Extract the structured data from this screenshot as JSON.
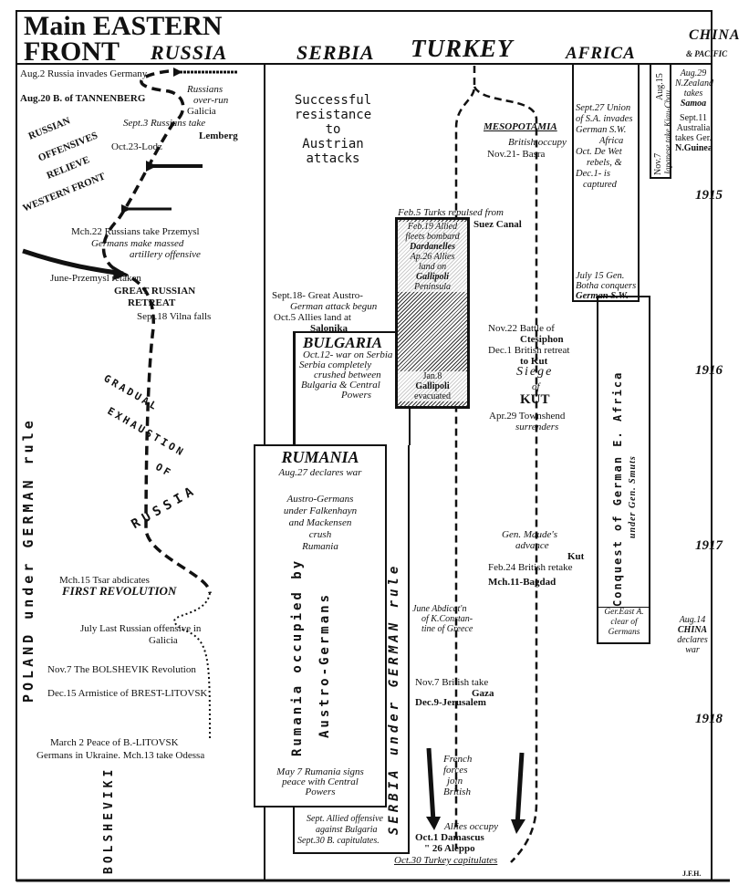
{
  "title": {
    "line1": "Main EASTERN",
    "line2": "FRONT"
  },
  "headers": {
    "russia": "RUSSIA",
    "serbia": "SERBIA",
    "turkey": "TURKEY",
    "africa": "AFRICA",
    "china": "CHINA",
    "pacific": "& PACIFIC"
  },
  "years": [
    "1915",
    "1916",
    "1917",
    "1918"
  ],
  "russia": {
    "events": [
      "Aug.2 Russia invades Germany",
      "Aug.20 B. of TANNENBERG",
      "Russians",
      "over-run",
      "Galicia",
      "Sept.3 Russians take",
      "Lemberg",
      "Oct.23-Lodz",
      "Mch.22 Russians take Przemysl",
      "Germans make massed",
      "artillery offensive",
      "June-Przemysl retaken",
      "GREAT RUSSIAN",
      "RETREAT",
      "Sept.18 Vilna falls",
      "Mch.15 Tsar abdicates",
      "FIRST REVOLUTION",
      "July Last Russian offensive in",
      "Galicia",
      "Nov.7 The BOLSHEVIK Revolution",
      "Dec.15 Armistice of BREST-LITOVSK",
      "March 2 Peace of B.-LITOVSK",
      "Germans in Ukraine. Mch.13 take Odessa"
    ],
    "offensive_words": [
      "RUSSIAN",
      "OFFENSIVES",
      "RELIEVE",
      "WESTERN FRONT"
    ],
    "exhaustion_words": [
      "GRADUAL",
      "EXHAUSTION",
      "OF",
      "RUSSIA"
    ],
    "poland": "POLAND under GERMAN rule",
    "bolsheviki": "BOLSHEVIKI"
  },
  "serbia": {
    "resistance": [
      "Successful",
      "resistance",
      "to",
      "Austrian",
      "attacks"
    ],
    "attack": [
      "Sept.18- Great Austro-",
      "German attack begun",
      "Oct.5 Allies land at",
      "Salonika"
    ],
    "bulgaria": {
      "title": "BULGARIA",
      "lines": [
        "Oct.12- war on Serbia",
        "Serbia completely",
        "crushed between",
        "Bulgaria & Central",
        "Powers"
      ]
    },
    "rumania": {
      "title": "RUMANIA",
      "declares": "Aug.27 declares war",
      "crush": [
        "Austro-Germans",
        "under Falkenhayn",
        "and Mackensen",
        "crush",
        "Rumania"
      ],
      "occupied": [
        "Rumania occupied by",
        "Austro-Germans"
      ],
      "peace": [
        "May 7 Rumania signs",
        "peace with Central",
        "Powers"
      ]
    },
    "german_rule": "SERBIA under GERMAN rule",
    "constantine": [
      "June Abdicat'n",
      "of K.Constan-",
      "tine of Greece"
    ],
    "allied_offensive": [
      "Sept. Allied offensive",
      "against Bulgaria",
      "Sept.30 B. capitulates."
    ]
  },
  "turkey": {
    "mesopotamia": "MESOPOTAMIA",
    "basra": [
      "British occupy",
      "Nov.21- Basra"
    ],
    "suez": [
      "Feb.5 Turks repulsed from",
      "Suez Canal"
    ],
    "gallipoli": [
      "Feb.19 Allied",
      "fleets bombard",
      "Dardanelles",
      "Ap.26 Allies",
      "land on",
      "Gallipoli",
      "Peninsula",
      "Jan.8",
      "Gallipoli",
      "evacuated"
    ],
    "kut": [
      "Nov.22 Battle of",
      "Ctesiphon",
      "Dec.1 British retreat",
      "to Kut",
      "Siege",
      "of",
      "KUT",
      "Apr.29 Townshend",
      "surrenders"
    ],
    "bagdad": [
      "Gen. Maude's",
      "advance",
      "Kut",
      "Feb.24 British retake",
      "Mch.11-Bagdad"
    ],
    "gaza": [
      "Nov.7 British take",
      "Gaza",
      "Dec.9-Jerusalem"
    ],
    "french": [
      "French",
      "forces",
      "join",
      "British"
    ],
    "end": [
      "Allies occupy",
      "Oct.1 Damascus",
      "\" 26 Aleppo",
      "Oct.30 Turkey capitulates"
    ]
  },
  "africa": {
    "sw": [
      "Sept.27 Union",
      "of S.A. invades",
      "German S.W.",
      "Africa",
      "Oct. De Wet",
      "rebels, &",
      "Dec.1- is",
      "captured"
    ],
    "botha": [
      "July 15 Gen.",
      "Botha conquers",
      "German S.W."
    ],
    "conquest": [
      "Conquest of German E. Africa",
      "under Gen. Smuts"
    ],
    "clear": [
      "Ger.East A.",
      "clear of",
      "Germans"
    ]
  },
  "china": {
    "kiauchau": [
      "Aug.15",
      "Nov.7",
      "Japanese take Kiau-Chau"
    ],
    "samoa": [
      "Aug.29",
      "N.Zealand",
      "takes",
      "Samoa"
    ],
    "guinea": [
      "Sept.11",
      "Australia",
      "takes Ger.",
      "N.Guinea"
    ],
    "declares": [
      "Aug.14",
      "CHINA",
      "declares",
      "war"
    ]
  },
  "signature": "J.F.H."
}
